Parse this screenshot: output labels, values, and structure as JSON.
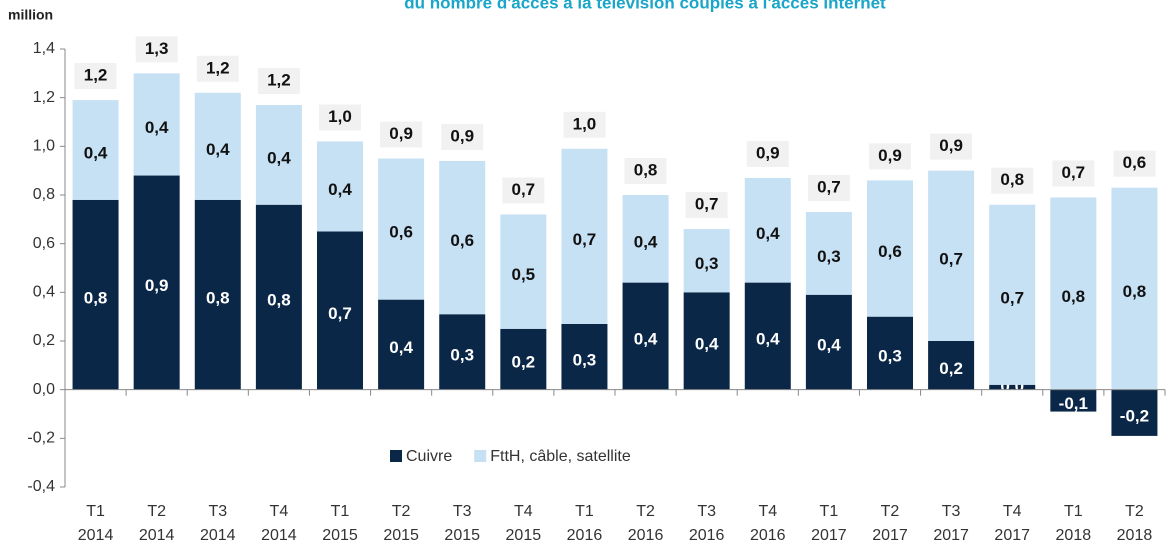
{
  "chart_data": {
    "type": "stacked_bar",
    "title": "du nombre d'accès à la télévision couplés à l'accès internet",
    "y_label": "million",
    "categories": [
      [
        "T1",
        "2014"
      ],
      [
        "T2",
        "2014"
      ],
      [
        "T3",
        "2014"
      ],
      [
        "T4",
        "2014"
      ],
      [
        "T1",
        "2015"
      ],
      [
        "T2",
        "2015"
      ],
      [
        "T3",
        "2015"
      ],
      [
        "T4",
        "2015"
      ],
      [
        "T1",
        "2016"
      ],
      [
        "T2",
        "2016"
      ],
      [
        "T3",
        "2016"
      ],
      [
        "T4",
        "2016"
      ],
      [
        "T1",
        "2017"
      ],
      [
        "T2",
        "2017"
      ],
      [
        "T3",
        "2017"
      ],
      [
        "T4",
        "2017"
      ],
      [
        "T1",
        "2018"
      ],
      [
        "T2",
        "2018"
      ]
    ],
    "series": [
      {
        "name": "Cuivre",
        "color": "#0b2748",
        "values": [
          0.78,
          0.88,
          0.78,
          0.76,
          0.65,
          0.37,
          0.31,
          0.25,
          0.27,
          0.44,
          0.4,
          0.44,
          0.39,
          0.3,
          0.2,
          0.02,
          -0.09,
          -0.19
        ],
        "value_labels": [
          "0,8",
          "0,9",
          "0,8",
          "0,8",
          "0,7",
          "0,4",
          "0,3",
          "0,2",
          "0,3",
          "0,4",
          "0,4",
          "0,4",
          "0,4",
          "0,3",
          "0,2",
          "0,0",
          "-0,1",
          "-0,2"
        ]
      },
      {
        "name": "FttH, câble, satellite",
        "color": "#c6e0f4",
        "values": [
          0.41,
          0.42,
          0.44,
          0.41,
          0.37,
          0.58,
          0.63,
          0.47,
          0.72,
          0.36,
          0.26,
          0.43,
          0.34,
          0.56,
          0.7,
          0.74,
          0.79,
          0.83
        ],
        "value_labels": [
          "0,4",
          "0,4",
          "0,4",
          "0,4",
          "0,4",
          "0,6",
          "0,6",
          "0,5",
          "0,7",
          "0,4",
          "0,3",
          "0,4",
          "0,3",
          "0,6",
          "0,7",
          "0,7",
          "0,8",
          "0,8"
        ]
      }
    ],
    "totals": {
      "values": [
        1.19,
        1.3,
        1.22,
        1.17,
        1.02,
        0.95,
        0.94,
        0.72,
        0.99,
        0.8,
        0.66,
        0.87,
        0.73,
        0.86,
        0.9,
        0.76,
        0.7,
        0.64
      ],
      "value_labels": [
        "1,2",
        "1,3",
        "1,2",
        "1,2",
        "1,0",
        "0,9",
        "0,9",
        "0,7",
        "1,0",
        "0,8",
        "0,7",
        "0,9",
        "0,7",
        "0,9",
        "0,9",
        "0,8",
        "0,7",
        "0,6"
      ]
    },
    "ylim": [
      -0.4,
      1.4
    ],
    "yticks": [
      {
        "value": -0.4,
        "label": "-0,4"
      },
      {
        "value": -0.2,
        "label": "-0,2"
      },
      {
        "value": 0,
        "label": "0,0"
      },
      {
        "value": 0.2,
        "label": "0,2"
      },
      {
        "value": 0.4,
        "label": "0,4"
      },
      {
        "value": 0.6,
        "label": "0,6"
      },
      {
        "value": 0.8,
        "label": "0,8"
      },
      {
        "value": 1.0,
        "label": "1,0"
      },
      {
        "value": 1.2,
        "label": "1,2"
      },
      {
        "value": 1.4,
        "label": "1,4"
      }
    ],
    "grid": false,
    "legend": "bottom-left"
  }
}
